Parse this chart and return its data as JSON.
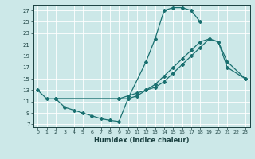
{
  "xlabel": "Humidex (Indice chaleur)",
  "bg_color": "#cce8e8",
  "grid_color": "#ffffff",
  "line_color": "#1a7070",
  "xlim": [
    -0.5,
    23.5
  ],
  "ylim": [
    6.5,
    28.0
  ],
  "xticks": [
    0,
    1,
    2,
    3,
    4,
    5,
    6,
    7,
    8,
    9,
    10,
    11,
    12,
    13,
    14,
    15,
    16,
    17,
    18,
    19,
    20,
    21,
    22,
    23
  ],
  "yticks": [
    7,
    9,
    11,
    13,
    15,
    17,
    19,
    21,
    23,
    25,
    27
  ],
  "line1": {
    "x": [
      0,
      1,
      2,
      9,
      10,
      12,
      13,
      14,
      15,
      16,
      17,
      18
    ],
    "y": [
      13.0,
      11.5,
      11.5,
      11.5,
      11.5,
      18.0,
      22.0,
      27.0,
      27.5,
      27.5,
      27.0,
      25.0
    ]
  },
  "line2": {
    "x": [
      2,
      3,
      4,
      5,
      6,
      7,
      8,
      9,
      10,
      11,
      12,
      13,
      14,
      15,
      16,
      17,
      18,
      19,
      20,
      21,
      23
    ],
    "y": [
      11.5,
      10.0,
      9.5,
      9.0,
      8.5,
      8.0,
      7.7,
      7.5,
      11.5,
      12.0,
      13.0,
      14.0,
      15.5,
      17.0,
      18.5,
      20.0,
      21.5,
      22.0,
      21.5,
      17.0,
      15.0
    ]
  },
  "line3": {
    "x": [
      2,
      9,
      10,
      11,
      12,
      13,
      14,
      15,
      16,
      17,
      18,
      19,
      20,
      21,
      23
    ],
    "y": [
      11.5,
      11.5,
      12.0,
      12.5,
      13.0,
      13.5,
      14.5,
      16.0,
      17.5,
      19.0,
      20.5,
      22.0,
      21.5,
      18.0,
      15.0
    ]
  }
}
